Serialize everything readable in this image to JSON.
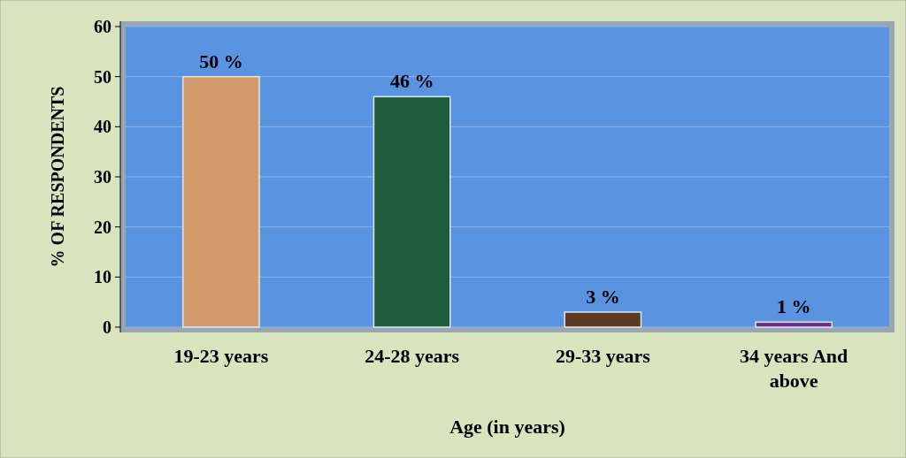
{
  "chart_data": {
    "type": "bar",
    "categories": [
      "19-23 years",
      "24-28 years",
      "29-33 years",
      "34 years And above"
    ],
    "values": [
      50,
      46,
      3,
      1
    ],
    "colors": [
      "#d19a6a",
      "#1e5b3c",
      "#5c3a22",
      "#6b2c8c"
    ],
    "value_labels": [
      "50 %",
      "46 %",
      "3 %",
      "1 %"
    ],
    "xlabel": "Age (in years)",
    "ylabel": "% OF RESPONDENTS",
    "ylim": [
      0,
      60
    ],
    "yticks": [
      0,
      10,
      20,
      30,
      40,
      50,
      60
    ],
    "grid": "y"
  }
}
